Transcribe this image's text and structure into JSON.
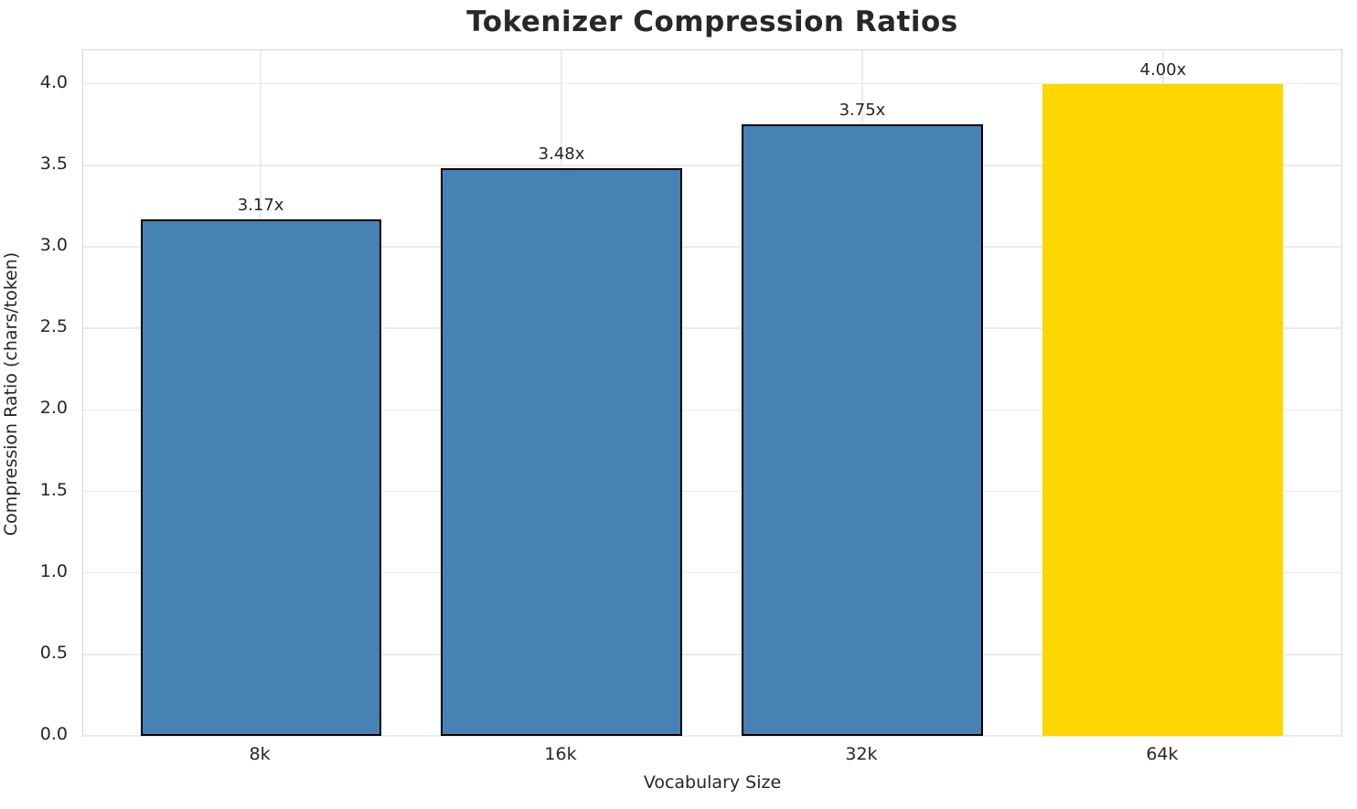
{
  "chart_data": {
    "type": "bar",
    "title": "Tokenizer Compression Ratios",
    "xlabel": "Vocabulary Size",
    "ylabel": "Compression Ratio (chars/token)",
    "categories": [
      "8k",
      "16k",
      "32k",
      "64k"
    ],
    "values": [
      3.17,
      3.48,
      3.75,
      4.0
    ],
    "bar_labels": [
      "3.17x",
      "3.48x",
      "3.75x",
      "4.00x"
    ],
    "highlight_index": 3,
    "ylim": [
      0,
      4.2
    ],
    "xlim": [
      -0.59,
      3.59
    ],
    "bar_width_units": 0.8,
    "yticks": [
      0.0,
      0.5,
      1.0,
      1.5,
      2.0,
      2.5,
      3.0,
      3.5,
      4.0
    ],
    "ytick_labels": [
      "0.0",
      "0.5",
      "1.0",
      "1.5",
      "2.0",
      "2.5",
      "3.0",
      "3.5",
      "4.0"
    ],
    "grid": true,
    "legend": null,
    "colors": {
      "bar": "#4682B4",
      "highlight": "#FFD700",
      "bar_edge": "#000000",
      "grid": "#ebebeb",
      "spine": "#d5d5d5",
      "text": "#262626",
      "title": "#282828"
    }
  }
}
